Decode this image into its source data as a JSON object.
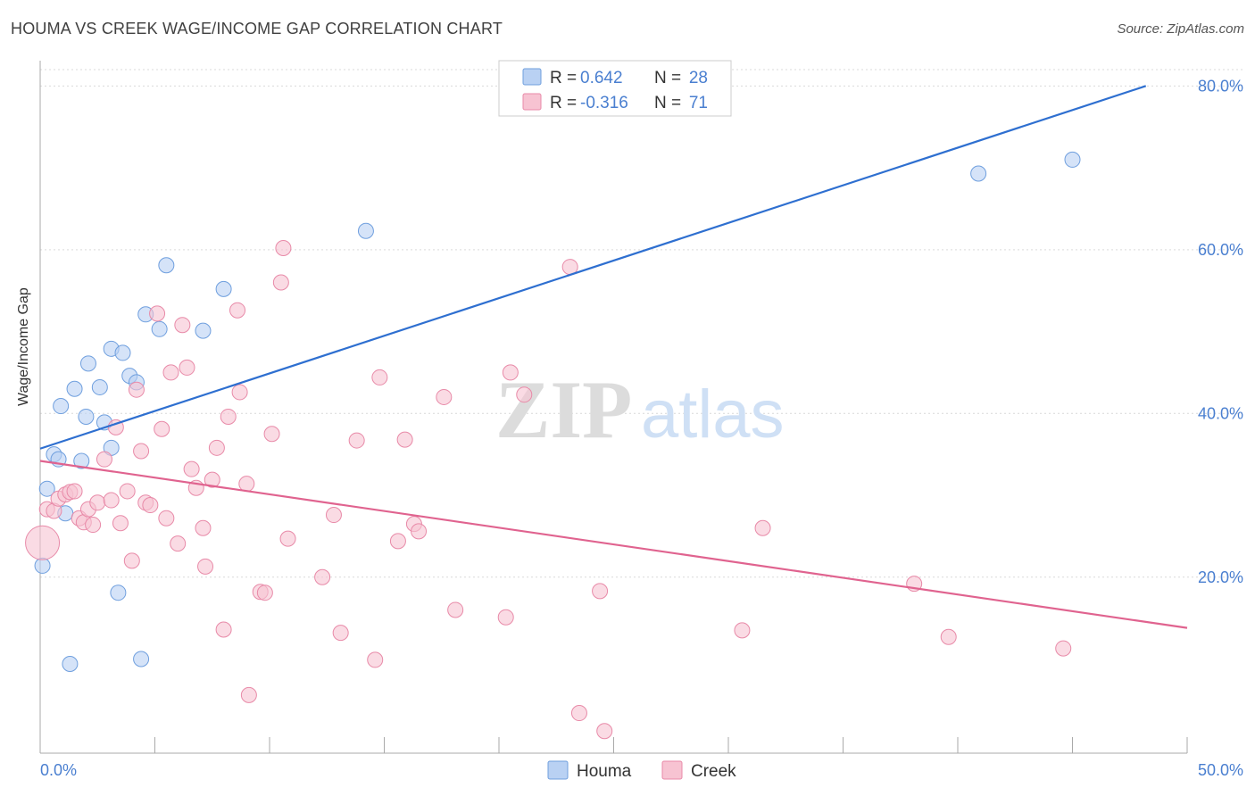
{
  "header": {
    "title": "HOUMA VS CREEK WAGE/INCOME GAP CORRELATION CHART",
    "source": "Source: ZipAtlas.com"
  },
  "watermark": {
    "zip": "ZIP",
    "atlas": "atlas"
  },
  "legend": {
    "rows": [
      {
        "r_label": "R =",
        "r_value": "0.642",
        "n_label": "N =",
        "n_value": "28"
      },
      {
        "r_label": "R =",
        "r_value": "-0.316",
        "n_label": "N =",
        "n_value": "71"
      }
    ],
    "bottom": [
      "Houma",
      "Creek"
    ]
  },
  "colors": {
    "houma_fill": "#b9d1f3",
    "houma_stroke": "#6f9fde",
    "houma_line": "#2e6fd0",
    "creek_fill": "#f7c3d2",
    "creek_stroke": "#e88aa8",
    "creek_line": "#e0638f",
    "axis_text": "#4a7fd0",
    "grid": "#d9d9d9"
  },
  "chart_data": {
    "type": "scatter",
    "title": "HOUMA VS CREEK WAGE/INCOME GAP CORRELATION CHART",
    "xlabel": "",
    "ylabel": "Wage/Income Gap",
    "xlim": [
      0,
      50
    ],
    "ylim": [
      -1.5,
      82
    ],
    "x_tick_labels": [
      "0.0%",
      "50.0%"
    ],
    "y_ticks": [
      20,
      40,
      60,
      80
    ],
    "y_tick_labels": [
      "20.0%",
      "40.0%",
      "60.0%",
      "80.0%"
    ],
    "series": [
      {
        "name": "Houma",
        "R": 0.642,
        "N": 28,
        "trend": {
          "x": [
            0,
            48.2
          ],
          "y": [
            35.7,
            80.0
          ]
        },
        "points": [
          [
            0.1,
            21.4
          ],
          [
            0.3,
            30.8
          ],
          [
            0.6,
            35.0
          ],
          [
            0.8,
            34.4
          ],
          [
            0.9,
            40.9
          ],
          [
            1.1,
            27.8
          ],
          [
            1.3,
            9.4
          ],
          [
            1.5,
            43.0
          ],
          [
            1.8,
            34.2
          ],
          [
            2.0,
            39.6
          ],
          [
            2.1,
            46.1
          ],
          [
            2.6,
            43.2
          ],
          [
            2.8,
            38.9
          ],
          [
            3.1,
            35.8
          ],
          [
            3.1,
            47.9
          ],
          [
            3.4,
            18.1
          ],
          [
            3.6,
            47.4
          ],
          [
            3.9,
            44.6
          ],
          [
            4.2,
            43.8
          ],
          [
            4.4,
            10.0
          ],
          [
            4.6,
            52.1
          ],
          [
            5.2,
            50.3
          ],
          [
            5.5,
            58.1
          ],
          [
            7.1,
            50.1
          ],
          [
            8.0,
            55.2
          ],
          [
            14.2,
            62.3
          ],
          [
            40.9,
            69.3
          ],
          [
            45.0,
            71.0
          ]
        ]
      },
      {
        "name": "Creek",
        "R": -0.316,
        "N": 71,
        "trend": {
          "x": [
            0,
            50
          ],
          "y": [
            34.2,
            13.8
          ]
        },
        "points": [
          [
            0.1,
            24.2
          ],
          [
            0.3,
            28.3
          ],
          [
            0.6,
            28.1
          ],
          [
            0.8,
            29.6
          ],
          [
            1.1,
            30.1
          ],
          [
            1.3,
            30.4
          ],
          [
            1.5,
            30.5
          ],
          [
            1.7,
            27.2
          ],
          [
            1.9,
            26.7
          ],
          [
            2.1,
            28.3
          ],
          [
            2.3,
            26.4
          ],
          [
            2.5,
            29.1
          ],
          [
            2.8,
            34.4
          ],
          [
            3.1,
            29.4
          ],
          [
            3.3,
            38.3
          ],
          [
            3.5,
            26.6
          ],
          [
            3.8,
            30.5
          ],
          [
            4.0,
            22.0
          ],
          [
            4.2,
            42.9
          ],
          [
            4.4,
            35.4
          ],
          [
            4.6,
            29.1
          ],
          [
            4.8,
            28.8
          ],
          [
            5.1,
            52.2
          ],
          [
            5.3,
            38.1
          ],
          [
            5.5,
            27.2
          ],
          [
            5.7,
            45.0
          ],
          [
            6.0,
            24.1
          ],
          [
            6.2,
            50.8
          ],
          [
            6.4,
            45.6
          ],
          [
            6.6,
            33.2
          ],
          [
            6.8,
            30.9
          ],
          [
            7.1,
            26.0
          ],
          [
            7.2,
            21.3
          ],
          [
            7.5,
            31.9
          ],
          [
            7.7,
            35.8
          ],
          [
            8.0,
            13.6
          ],
          [
            8.2,
            39.6
          ],
          [
            8.6,
            52.6
          ],
          [
            8.7,
            42.6
          ],
          [
            9.0,
            31.4
          ],
          [
            9.1,
            5.6
          ],
          [
            9.6,
            18.2
          ],
          [
            9.8,
            18.1
          ],
          [
            10.1,
            37.5
          ],
          [
            10.5,
            56.0
          ],
          [
            10.6,
            60.2
          ],
          [
            10.8,
            24.7
          ],
          [
            12.3,
            20.0
          ],
          [
            12.8,
            27.6
          ],
          [
            13.1,
            13.2
          ],
          [
            13.8,
            36.7
          ],
          [
            14.6,
            9.9
          ],
          [
            14.8,
            44.4
          ],
          [
            15.6,
            24.4
          ],
          [
            15.9,
            36.8
          ],
          [
            16.3,
            26.5
          ],
          [
            16.5,
            25.6
          ],
          [
            17.6,
            42.0
          ],
          [
            18.1,
            16.0
          ],
          [
            20.3,
            15.1
          ],
          [
            20.5,
            45.0
          ],
          [
            21.1,
            42.3
          ],
          [
            23.1,
            57.9
          ],
          [
            23.5,
            3.4
          ],
          [
            24.4,
            18.3
          ],
          [
            24.6,
            1.2
          ],
          [
            30.6,
            13.5
          ],
          [
            31.5,
            26.0
          ],
          [
            38.1,
            19.2
          ],
          [
            39.6,
            12.7
          ],
          [
            44.6,
            11.3
          ]
        ]
      }
    ]
  }
}
